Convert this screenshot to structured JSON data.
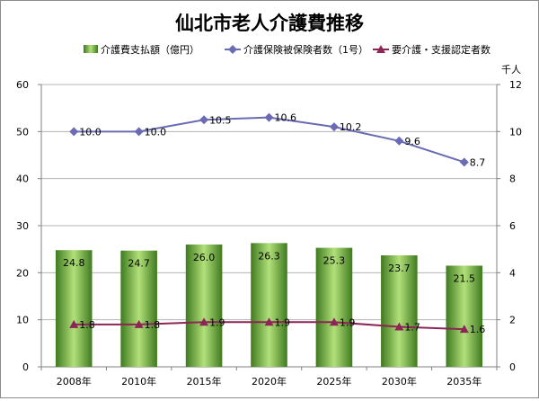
{
  "chart_data": {
    "type": "bar+line",
    "title": "仙北市老人介護費推移",
    "categories": [
      "2008年",
      "2010年",
      "2015年",
      "2020年",
      "2025年",
      "2030年",
      "2035年"
    ],
    "y_left": {
      "ylim": [
        0,
        60
      ],
      "ticks": [
        0,
        10,
        20,
        30,
        40,
        50,
        60
      ]
    },
    "y_right": {
      "unit_label": "千人",
      "ylim": [
        0,
        12
      ],
      "ticks": [
        0,
        2,
        4,
        6,
        8,
        10,
        12
      ]
    },
    "legend_position": "top",
    "grid": true,
    "series": [
      {
        "name": "介護費支払額（億円）",
        "type": "bar",
        "axis": "left",
        "values": [
          24.8,
          24.7,
          26.0,
          26.3,
          25.3,
          23.7,
          21.5
        ],
        "labels": [
          "24.8",
          "24.7",
          "26.0",
          "26.3",
          "25.3",
          "23.7",
          "21.5"
        ],
        "color_dark": "#3f7a1f",
        "color_light": "#b2e07a"
      },
      {
        "name": "介護保険被保険者数（1号）",
        "type": "line",
        "axis": "right",
        "values": [
          10.0,
          10.0,
          10.5,
          10.6,
          10.2,
          9.6,
          8.7
        ],
        "labels": [
          "10.0",
          "10.0",
          "10.5",
          "10.6",
          "10.2",
          "9.6",
          "8.7"
        ],
        "color": "#6b6bb5",
        "marker": "diamond"
      },
      {
        "name": "要介護・支援認定者数",
        "type": "line",
        "axis": "right",
        "values": [
          1.8,
          1.8,
          1.9,
          1.9,
          1.9,
          1.7,
          1.6
        ],
        "labels": [
          "1.8",
          "1.8",
          "1.9",
          "1.9",
          "1.9",
          "1.7",
          "1.6"
        ],
        "color": "#8e2557",
        "marker": "triangle"
      }
    ]
  }
}
